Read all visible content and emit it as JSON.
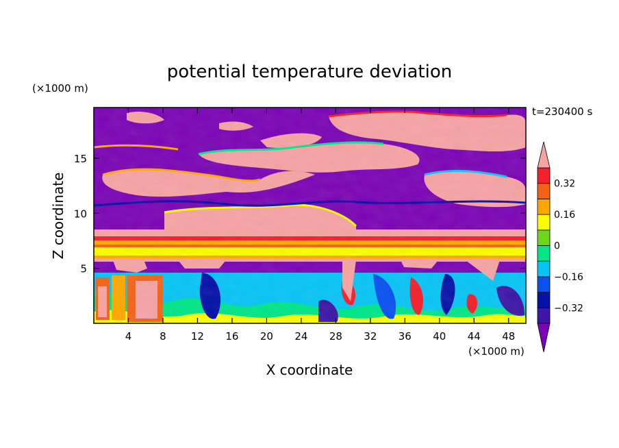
{
  "chart_data": {
    "type": "heatmap",
    "title": "potential temperature deviation",
    "xlabel": "X coordinate",
    "ylabel": "Z coordinate",
    "x_unit": "(×1000 m)",
    "y_unit": "(×1000 m)",
    "time_label": "t=230400 s",
    "xlim": [
      0,
      50
    ],
    "ylim": [
      0,
      19.6
    ],
    "xticks": [
      4,
      8,
      12,
      16,
      20,
      24,
      28,
      32,
      36,
      40,
      44,
      48
    ],
    "yticks": [
      5,
      10,
      15
    ],
    "colorbar": {
      "levels": [
        -0.4,
        -0.32,
        -0.24,
        -0.16,
        -0.08,
        0,
        0.08,
        0.16,
        0.24,
        0.32,
        0.4
      ],
      "tick_values": [
        0.32,
        0.16,
        0,
        -0.16,
        -0.32
      ],
      "tick_labels": [
        "0.32",
        "0.16",
        "0",
        "−0.16",
        "−0.32"
      ],
      "colors": [
        "#7b05b5",
        "#3c16a6",
        "#0512a8",
        "#0a50ee",
        "#08c4f4",
        "#00e687",
        "#6ed61c",
        "#fbfc00",
        "#fea700",
        "#f36315",
        "#f3202d",
        "#f6a3a3"
      ],
      "extend": "both"
    },
    "field_description_rows": [
      {
        "z_range": [
          0,
          5
        ],
        "pattern": "mixed warm/cool columns"
      },
      {
        "z_range": [
          5,
          6
        ],
        "level": -0.4
      },
      {
        "z_range": [
          6,
          8.5
        ],
        "pattern": "warm stratified bands"
      },
      {
        "z_range": [
          8.5,
          19.6
        ],
        "pattern": "alternating >0.4 and <-0.4 patches"
      }
    ]
  }
}
